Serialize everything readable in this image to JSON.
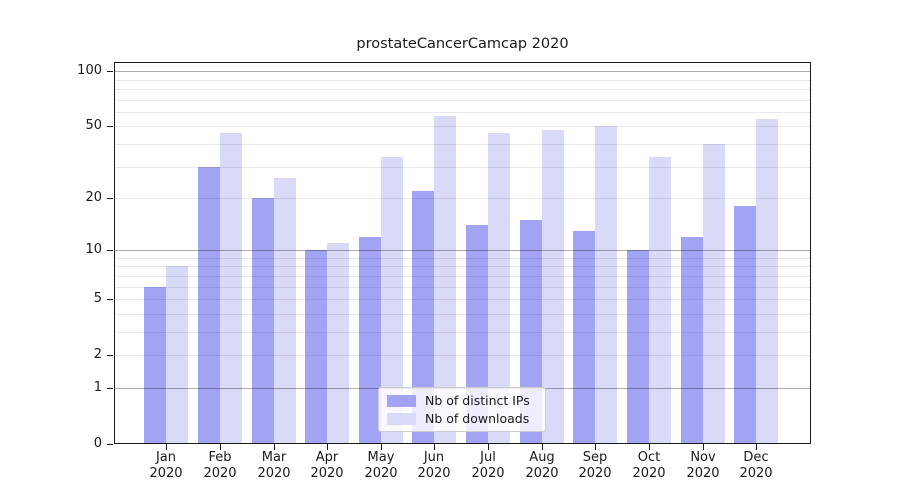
{
  "chart_data": {
    "type": "bar",
    "title": "prostateCancerCamcap 2020",
    "categories": [
      "Jan",
      "Feb",
      "Mar",
      "Apr",
      "May",
      "Jun",
      "Jul",
      "Aug",
      "Sep",
      "Oct",
      "Nov",
      "Dec"
    ],
    "year_label": "2020",
    "series": [
      {
        "name": "Nb of distinct IPs",
        "color": "#a3a3f4",
        "values": [
          6,
          30,
          20,
          10,
          12,
          22,
          14,
          15,
          13,
          10,
          12,
          18
        ]
      },
      {
        "name": "Nb of downloads",
        "color": "#d9d9f8",
        "values": [
          8,
          46,
          26,
          11,
          34,
          57,
          46,
          48,
          50,
          34,
          40,
          55
        ]
      }
    ],
    "xlabel": "",
    "ylabel": "",
    "yscale": "log1p",
    "ylim": [
      0,
      112
    ],
    "y_tick_labels": [
      "100",
      "50",
      "20",
      "10",
      "5",
      "2",
      "1",
      "0"
    ],
    "y_major_gridlines": [
      1,
      10,
      100
    ],
    "y_minor_gridlines": [
      2,
      3,
      4,
      5,
      6,
      7,
      8,
      9,
      20,
      30,
      40,
      50,
      60,
      70,
      80,
      90
    ],
    "grid": true,
    "legend_position": "lower center"
  }
}
